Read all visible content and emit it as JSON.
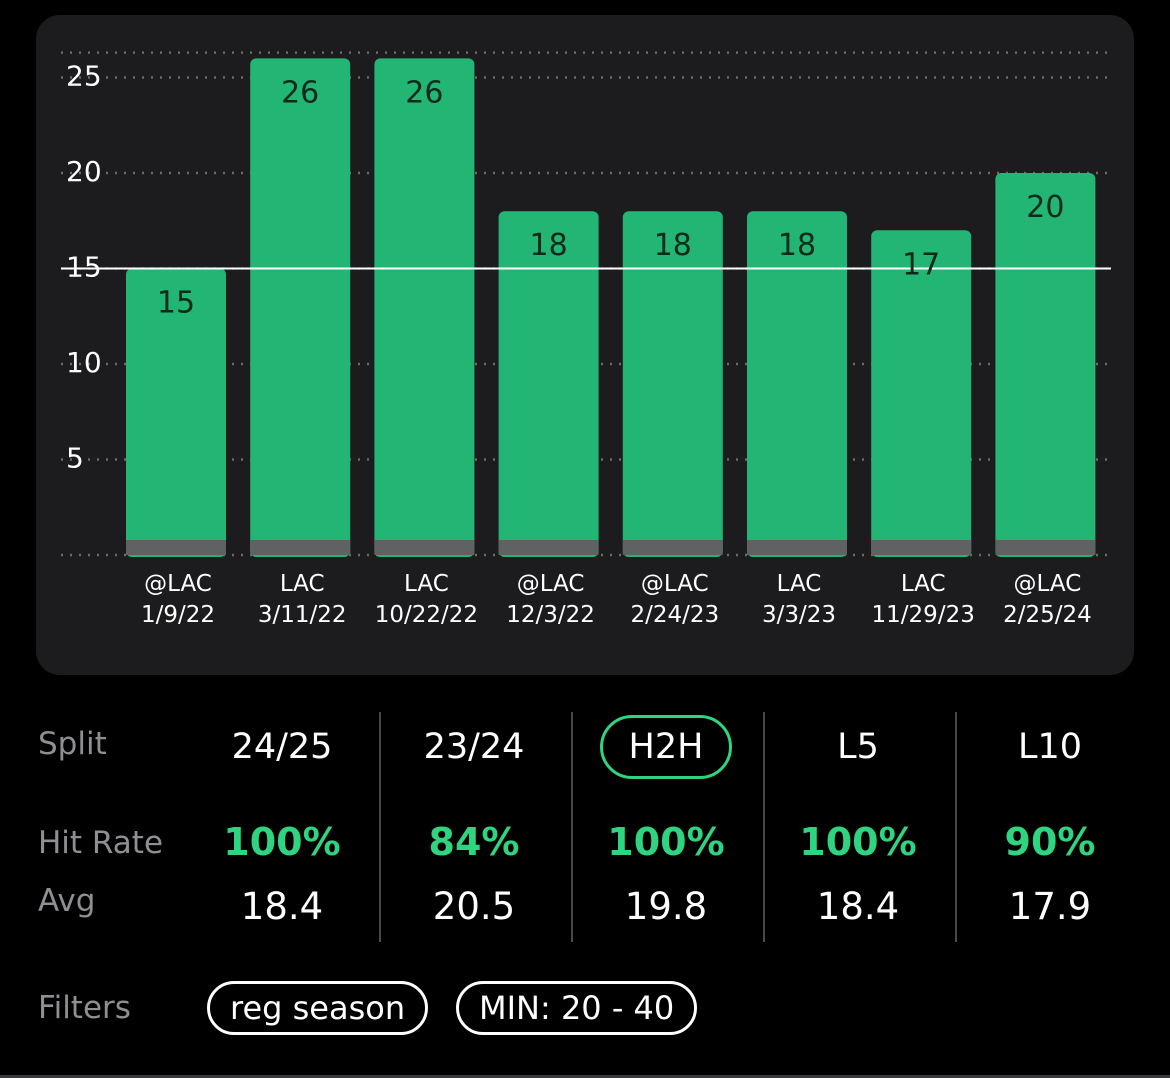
{
  "chart_data": {
    "type": "bar",
    "categories": [
      "@LAC",
      "LAC",
      "LAC",
      "@LAC",
      "@LAC",
      "LAC",
      "LAC",
      "@LAC"
    ],
    "dates": [
      "1/9/22",
      "3/11/22",
      "10/22/22",
      "12/3/22",
      "2/24/23",
      "3/3/23",
      "11/29/23",
      "2/25/24"
    ],
    "values": [
      15,
      26,
      26,
      18,
      18,
      18,
      17,
      20
    ],
    "y_ticks": [
      5,
      10,
      15,
      20,
      25
    ],
    "ylim": [
      0,
      27
    ],
    "threshold": 15,
    "grid": true,
    "colors": {
      "bar": "#23b574",
      "bar_base": "#5f6162",
      "threshold": "#ffffff",
      "grid": "#6a6a6a",
      "label": "#0d2a1b"
    }
  },
  "stats": {
    "split_label": "Split",
    "hit_rate_label": "Hit Rate",
    "avg_label": "Avg",
    "columns": [
      {
        "split": "24/25",
        "hit_rate": "100%",
        "avg": "18.4"
      },
      {
        "split": "23/24",
        "hit_rate": "84%",
        "avg": "20.5"
      },
      {
        "split": "H2H",
        "hit_rate": "100%",
        "avg": "19.8",
        "active": true
      },
      {
        "split": "L5",
        "hit_rate": "100%",
        "avg": "18.4"
      },
      {
        "split": "L10",
        "hit_rate": "90%",
        "avg": "17.9"
      }
    ]
  },
  "filters": {
    "label": "Filters",
    "chips": [
      "reg season",
      "MIN: 20 - 40"
    ]
  },
  "accent_color": "#2ed47f"
}
